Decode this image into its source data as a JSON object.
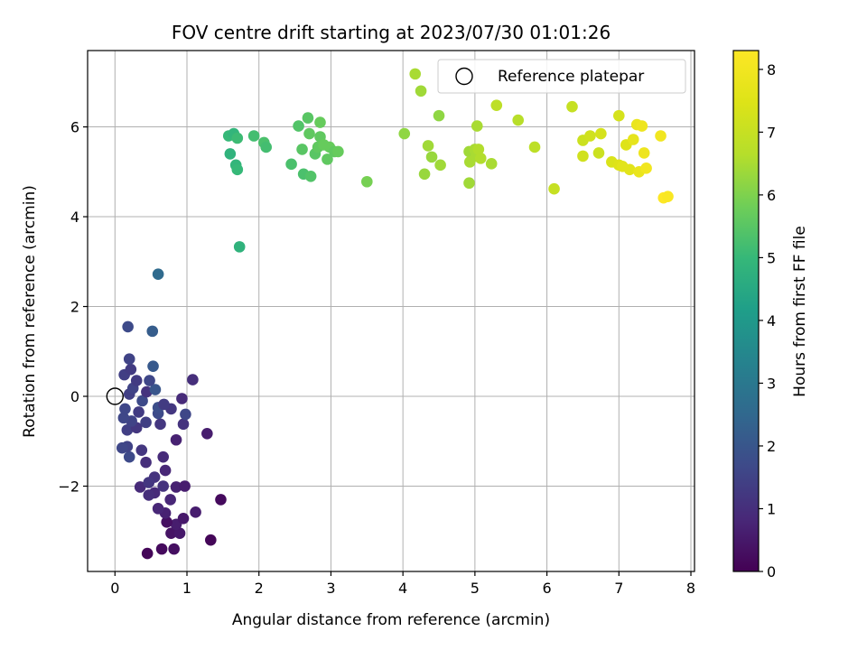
{
  "chart_data": {
    "type": "scatter",
    "title": "FOV centre drift starting at 2023/07/30 01:01:26",
    "xlabel": "Angular distance from reference (arcmin)",
    "ylabel": "Rotation from reference (arcmin)",
    "xlim": [
      -0.38,
      8.05
    ],
    "ylim": [
      -3.9,
      7.7
    ],
    "xticks": [
      0,
      1,
      2,
      3,
      4,
      5,
      6,
      7,
      8
    ],
    "yticks": [
      -2,
      0,
      2,
      4,
      6
    ],
    "xtick_labels": [
      "0",
      "1",
      "2",
      "3",
      "4",
      "5",
      "6",
      "7",
      "8"
    ],
    "ytick_labels": [
      "−2",
      "0",
      "2",
      "4",
      "6"
    ],
    "grid": true,
    "colormap": "viridis",
    "colorbar": {
      "label": "Hours from first FF file",
      "range": [
        0,
        8.3
      ],
      "ticks": [
        0,
        1,
        2,
        3,
        4,
        5,
        6,
        7,
        8
      ],
      "tick_labels": [
        "0",
        "1",
        "2",
        "3",
        "4",
        "5",
        "6",
        "7",
        "8"
      ]
    },
    "legend": {
      "position": "top-right",
      "entries": [
        "Reference platepar"
      ]
    },
    "reference_point": {
      "x": 0,
      "y": 0
    },
    "points": [
      {
        "x": 0.45,
        "y": -3.5,
        "c": 0.1
      },
      {
        "x": 0.65,
        "y": -3.4,
        "c": 0.2
      },
      {
        "x": 0.82,
        "y": -3.4,
        "c": 0.3
      },
      {
        "x": 1.33,
        "y": -3.2,
        "c": 0.1
      },
      {
        "x": 0.78,
        "y": -3.05,
        "c": 0.4
      },
      {
        "x": 0.9,
        "y": -3.05,
        "c": 0.5
      },
      {
        "x": 0.85,
        "y": -2.85,
        "c": 0.6
      },
      {
        "x": 0.72,
        "y": -2.8,
        "c": 0.3
      },
      {
        "x": 0.95,
        "y": -2.72,
        "c": 0.5
      },
      {
        "x": 0.7,
        "y": -2.6,
        "c": 0.7
      },
      {
        "x": 1.12,
        "y": -2.58,
        "c": 0.6
      },
      {
        "x": 0.6,
        "y": -2.5,
        "c": 0.8
      },
      {
        "x": 0.77,
        "y": -2.3,
        "c": 0.8
      },
      {
        "x": 1.47,
        "y": -2.3,
        "c": 0.2
      },
      {
        "x": 0.55,
        "y": -2.15,
        "c": 0.9
      },
      {
        "x": 0.47,
        "y": -2.2,
        "c": 1.0
      },
      {
        "x": 0.67,
        "y": -2.0,
        "c": 1.1
      },
      {
        "x": 0.35,
        "y": -2.02,
        "c": 0.9
      },
      {
        "x": 0.85,
        "y": -2.02,
        "c": 0.7
      },
      {
        "x": 0.97,
        "y": -2.0,
        "c": 0.6
      },
      {
        "x": 0.55,
        "y": -1.8,
        "c": 1.1
      },
      {
        "x": 0.47,
        "y": -1.92,
        "c": 1.2
      },
      {
        "x": 0.7,
        "y": -1.65,
        "c": 0.8
      },
      {
        "x": 0.67,
        "y": -1.35,
        "c": 0.9
      },
      {
        "x": 0.43,
        "y": -1.47,
        "c": 1.0
      },
      {
        "x": 0.2,
        "y": -1.35,
        "c": 1.7
      },
      {
        "x": 0.37,
        "y": -1.2,
        "c": 1.2
      },
      {
        "x": 0.17,
        "y": -1.12,
        "c": 1.5
      },
      {
        "x": 0.1,
        "y": -1.15,
        "c": 1.6
      },
      {
        "x": 0.85,
        "y": -0.97,
        "c": 0.7
      },
      {
        "x": 1.28,
        "y": -0.83,
        "c": 0.6
      },
      {
        "x": 0.17,
        "y": -0.75,
        "c": 1.4
      },
      {
        "x": 0.3,
        "y": -0.7,
        "c": 1.2
      },
      {
        "x": 0.43,
        "y": -0.58,
        "c": 1.4
      },
      {
        "x": 0.63,
        "y": -0.62,
        "c": 1.2
      },
      {
        "x": 0.95,
        "y": -0.62,
        "c": 1.1
      },
      {
        "x": 0.23,
        "y": -0.55,
        "c": 1.5
      },
      {
        "x": 0.12,
        "y": -0.48,
        "c": 1.6
      },
      {
        "x": 0.33,
        "y": -0.35,
        "c": 1.3
      },
      {
        "x": 0.6,
        "y": -0.38,
        "c": 1.7
      },
      {
        "x": 0.78,
        "y": -0.28,
        "c": 1.2
      },
      {
        "x": 0.98,
        "y": -0.4,
        "c": 1.6
      },
      {
        "x": 0.14,
        "y": -0.28,
        "c": 1.6
      },
      {
        "x": 0.6,
        "y": -0.25,
        "c": 1.8
      },
      {
        "x": 0.68,
        "y": -0.18,
        "c": 1.3
      },
      {
        "x": 0.38,
        "y": -0.1,
        "c": 1.7
      },
      {
        "x": 0.93,
        "y": -0.05,
        "c": 0.9
      },
      {
        "x": 0.2,
        "y": 0.05,
        "c": 1.4
      },
      {
        "x": 0.25,
        "y": 0.18,
        "c": 1.5
      },
      {
        "x": 0.44,
        "y": 0.1,
        "c": 1.1
      },
      {
        "x": 0.56,
        "y": 0.15,
        "c": 2.0
      },
      {
        "x": 0.3,
        "y": 0.35,
        "c": 1.3
      },
      {
        "x": 0.48,
        "y": 0.35,
        "c": 1.6
      },
      {
        "x": 1.08,
        "y": 0.37,
        "c": 1.0
      },
      {
        "x": 0.13,
        "y": 0.48,
        "c": 1.4
      },
      {
        "x": 0.22,
        "y": 0.6,
        "c": 1.3
      },
      {
        "x": 0.53,
        "y": 0.67,
        "c": 2.1
      },
      {
        "x": 0.2,
        "y": 0.83,
        "c": 1.5
      },
      {
        "x": 0.18,
        "y": 1.55,
        "c": 1.7
      },
      {
        "x": 0.52,
        "y": 1.45,
        "c": 2.2
      },
      {
        "x": 0.6,
        "y": 2.72,
        "c": 2.6
      },
      {
        "x": 1.73,
        "y": 3.33,
        "c": 4.8
      },
      {
        "x": 1.58,
        "y": 5.8,
        "c": 5.0
      },
      {
        "x": 1.65,
        "y": 5.85,
        "c": 4.9
      },
      {
        "x": 1.7,
        "y": 5.75,
        "c": 5.1
      },
      {
        "x": 1.6,
        "y": 5.4,
        "c": 4.8
      },
      {
        "x": 1.68,
        "y": 5.15,
        "c": 4.9
      },
      {
        "x": 1.7,
        "y": 5.05,
        "c": 5.0
      },
      {
        "x": 1.93,
        "y": 5.8,
        "c": 5.2
      },
      {
        "x": 2.07,
        "y": 5.65,
        "c": 5.3
      },
      {
        "x": 2.1,
        "y": 5.55,
        "c": 5.2
      },
      {
        "x": 2.45,
        "y": 5.17,
        "c": 5.3
      },
      {
        "x": 2.55,
        "y": 6.02,
        "c": 5.4
      },
      {
        "x": 2.6,
        "y": 5.5,
        "c": 5.5
      },
      {
        "x": 2.62,
        "y": 4.95,
        "c": 5.3
      },
      {
        "x": 2.68,
        "y": 6.2,
        "c": 5.5
      },
      {
        "x": 2.7,
        "y": 5.85,
        "c": 5.6
      },
      {
        "x": 2.72,
        "y": 4.9,
        "c": 5.4
      },
      {
        "x": 2.78,
        "y": 5.4,
        "c": 5.5
      },
      {
        "x": 2.82,
        "y": 5.55,
        "c": 5.6
      },
      {
        "x": 2.85,
        "y": 6.1,
        "c": 5.7
      },
      {
        "x": 2.85,
        "y": 5.78,
        "c": 5.6
      },
      {
        "x": 2.9,
        "y": 5.6,
        "c": 5.7
      },
      {
        "x": 2.95,
        "y": 5.28,
        "c": 5.6
      },
      {
        "x": 2.98,
        "y": 5.55,
        "c": 5.7
      },
      {
        "x": 3.05,
        "y": 5.45,
        "c": 5.6
      },
      {
        "x": 3.1,
        "y": 5.45,
        "c": 5.7
      },
      {
        "x": 3.5,
        "y": 4.78,
        "c": 5.9
      },
      {
        "x": 4.02,
        "y": 5.85,
        "c": 6.2
      },
      {
        "x": 4.17,
        "y": 7.18,
        "c": 6.5
      },
      {
        "x": 4.25,
        "y": 6.8,
        "c": 6.4
      },
      {
        "x": 4.3,
        "y": 4.95,
        "c": 6.3
      },
      {
        "x": 4.35,
        "y": 5.58,
        "c": 6.4
      },
      {
        "x": 4.4,
        "y": 5.33,
        "c": 6.3
      },
      {
        "x": 4.5,
        "y": 6.25,
        "c": 6.2
      },
      {
        "x": 4.52,
        "y": 5.15,
        "c": 6.4
      },
      {
        "x": 4.92,
        "y": 5.45,
        "c": 6.4
      },
      {
        "x": 4.93,
        "y": 5.22,
        "c": 6.5
      },
      {
        "x": 4.92,
        "y": 4.75,
        "c": 6.4
      },
      {
        "x": 5.0,
        "y": 5.5,
        "c": 6.5
      },
      {
        "x": 5.02,
        "y": 5.35,
        "c": 6.5
      },
      {
        "x": 5.05,
        "y": 5.5,
        "c": 6.6
      },
      {
        "x": 5.03,
        "y": 6.02,
        "c": 6.5
      },
      {
        "x": 5.08,
        "y": 5.3,
        "c": 6.6
      },
      {
        "x": 5.23,
        "y": 5.18,
        "c": 6.5
      },
      {
        "x": 5.3,
        "y": 6.48,
        "c": 6.8
      },
      {
        "x": 5.6,
        "y": 6.15,
        "c": 6.7
      },
      {
        "x": 5.83,
        "y": 5.55,
        "c": 6.8
      },
      {
        "x": 6.1,
        "y": 4.62,
        "c": 7.0
      },
      {
        "x": 6.35,
        "y": 6.45,
        "c": 7.0
      },
      {
        "x": 6.5,
        "y": 5.7,
        "c": 7.1
      },
      {
        "x": 6.5,
        "y": 5.35,
        "c": 7.2
      },
      {
        "x": 6.6,
        "y": 5.8,
        "c": 7.2
      },
      {
        "x": 6.72,
        "y": 5.42,
        "c": 7.1
      },
      {
        "x": 6.75,
        "y": 5.85,
        "c": 7.3
      },
      {
        "x": 6.9,
        "y": 5.22,
        "c": 7.4
      },
      {
        "x": 7.0,
        "y": 6.25,
        "c": 7.3
      },
      {
        "x": 7.0,
        "y": 5.15,
        "c": 7.5
      },
      {
        "x": 7.05,
        "y": 5.12,
        "c": 7.6
      },
      {
        "x": 7.1,
        "y": 5.6,
        "c": 7.5
      },
      {
        "x": 7.15,
        "y": 5.05,
        "c": 7.6
      },
      {
        "x": 7.2,
        "y": 5.72,
        "c": 7.7
      },
      {
        "x": 7.25,
        "y": 6.05,
        "c": 7.8
      },
      {
        "x": 7.32,
        "y": 6.02,
        "c": 7.9
      },
      {
        "x": 7.28,
        "y": 5.0,
        "c": 7.8
      },
      {
        "x": 7.35,
        "y": 5.42,
        "c": 7.9
      },
      {
        "x": 7.38,
        "y": 5.08,
        "c": 8.0
      },
      {
        "x": 7.58,
        "y": 5.8,
        "c": 8.0
      },
      {
        "x": 7.62,
        "y": 4.42,
        "c": 8.3
      },
      {
        "x": 7.68,
        "y": 4.45,
        "c": 8.2
      }
    ]
  }
}
